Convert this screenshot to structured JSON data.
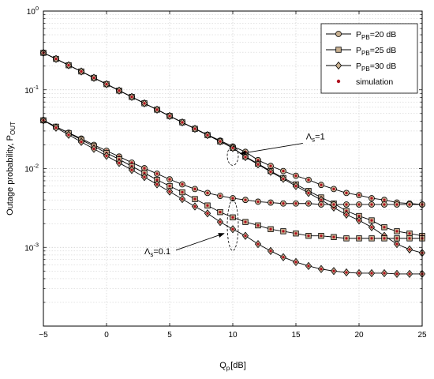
{
  "chart_data": {
    "type": "line",
    "title": "",
    "xlabel": "Q",
    "xlabel_sub": "p",
    "xlabel_suffix": " [dB]",
    "ylabel": "Outage probability, P",
    "ylabel_sub": "OUT",
    "xlim": [
      -5,
      25
    ],
    "ylim": [
      0.0001,
      1
    ],
    "yscale": "log",
    "grid": true,
    "legend_position": "top-right",
    "x_ticks": [
      -5,
      0,
      5,
      10,
      15,
      20,
      25
    ],
    "y_ticks": [
      {
        "value": 1,
        "base": "10",
        "exp": "0"
      },
      {
        "value": 0.1,
        "base": "10",
        "exp": "-1"
      },
      {
        "value": 0.01,
        "base": "10",
        "exp": "-2"
      },
      {
        "value": 0.001,
        "base": "10",
        "exp": "-3"
      }
    ],
    "x": [
      -5,
      -4,
      -3,
      -2,
      -1,
      0,
      1,
      2,
      3,
      4,
      5,
      6,
      7,
      8,
      9,
      10,
      11,
      12,
      13,
      14,
      15,
      16,
      17,
      18,
      19,
      20,
      21,
      22,
      23,
      24,
      25
    ],
    "series": [
      {
        "group": "Λs=1",
        "legend_index": 0,
        "marker": "circle",
        "values": [
          0.295,
          0.247,
          0.205,
          0.171,
          0.142,
          0.118,
          0.0978,
          0.0812,
          0.0674,
          0.056,
          0.0465,
          0.0386,
          0.0322,
          0.0269,
          0.0226,
          0.0191,
          0.0163,
          0.0128,
          0.0108,
          0.0093,
          0.0081,
          0.0072,
          0.0062,
          0.0055,
          0.0049,
          0.0046,
          0.0042,
          0.004,
          0.0037,
          0.0036,
          0.0035
        ]
      },
      {
        "group": "Λs=1",
        "legend_index": 1,
        "marker": "square",
        "values": [
          0.295,
          0.247,
          0.205,
          0.171,
          0.142,
          0.118,
          0.0978,
          0.0812,
          0.0674,
          0.056,
          0.0465,
          0.0386,
          0.032,
          0.0266,
          0.0221,
          0.0183,
          0.0142,
          0.0115,
          0.0093,
          0.0076,
          0.0063,
          0.0052,
          0.0043,
          0.0036,
          0.0029,
          0.0025,
          0.0022,
          0.0018,
          0.0016,
          0.0015,
          0.0014
        ]
      },
      {
        "group": "Λs=1",
        "legend_index": 2,
        "marker": "diamond",
        "values": [
          0.295,
          0.247,
          0.205,
          0.171,
          0.142,
          0.118,
          0.0978,
          0.0812,
          0.0674,
          0.056,
          0.0465,
          0.0386,
          0.032,
          0.0266,
          0.0221,
          0.0183,
          0.014,
          0.0113,
          0.0091,
          0.0074,
          0.006,
          0.0049,
          0.004,
          0.0032,
          0.0026,
          0.0022,
          0.0018,
          0.0014,
          0.0011,
          0.00094,
          0.00085
        ]
      },
      {
        "group": "Λs=0.1",
        "legend_index": 0,
        "marker": "circle",
        "values": [
          0.041,
          0.034,
          0.0285,
          0.024,
          0.02,
          0.0168,
          0.0142,
          0.0119,
          0.0101,
          0.0086,
          0.0073,
          0.0063,
          0.0055,
          0.0049,
          0.0045,
          0.0042,
          0.004,
          0.0038,
          0.0037,
          0.0036,
          0.0036,
          0.0036,
          0.0035,
          0.0035,
          0.0035,
          0.0035,
          0.0035,
          0.0035,
          0.0035,
          0.0035,
          0.0035
        ]
      },
      {
        "group": "Λs=0.1",
        "legend_index": 1,
        "marker": "square",
        "values": [
          0.041,
          0.034,
          0.0282,
          0.0232,
          0.0192,
          0.0158,
          0.0131,
          0.0107,
          0.0088,
          0.0072,
          0.006,
          0.005,
          0.0041,
          0.0034,
          0.0028,
          0.0024,
          0.0021,
          0.0019,
          0.0017,
          0.0016,
          0.0015,
          0.0014,
          0.0014,
          0.00135,
          0.0013,
          0.0013,
          0.0013,
          0.0013,
          0.0013,
          0.0013,
          0.0013
        ]
      },
      {
        "group": "Λs=0.1",
        "legend_index": 2,
        "marker": "diamond",
        "values": [
          0.041,
          0.033,
          0.0268,
          0.0218,
          0.0178,
          0.0145,
          0.0118,
          0.0096,
          0.0078,
          0.0063,
          0.0051,
          0.0041,
          0.0033,
          0.0027,
          0.0021,
          0.0017,
          0.0014,
          0.0011,
          0.0009,
          0.00075,
          0.00065,
          0.00058,
          0.00053,
          0.0005,
          0.00048,
          0.00047,
          0.00047,
          0.00047,
          0.00046,
          0.00046,
          0.00046
        ]
      }
    ],
    "legend": [
      {
        "prefix": "P",
        "sub": "PB",
        "suffix": "=20 dB",
        "marker": "circle"
      },
      {
        "prefix": "P",
        "sub": "PB",
        "suffix": "=25 dB",
        "marker": "square"
      },
      {
        "prefix": "P",
        "sub": "PB",
        "suffix": "=30 dB",
        "marker": "diamond"
      },
      {
        "prefix": "simulation",
        "sub": "",
        "suffix": "",
        "marker": "dot"
      }
    ],
    "annotations": [
      {
        "symbol": "Λ",
        "sub": "s",
        "suffix": "=1",
        "ellipse_center": [
          10,
          0.0145
        ],
        "arrow_to": [
          10.6,
          0.0155
        ],
        "text_at": [
          15.8,
          0.0235
        ]
      },
      {
        "symbol": "Λ",
        "sub": "s",
        "suffix": "=0.1",
        "ellipse_center": [
          10,
          0.0019
        ],
        "arrow_to": [
          9.3,
          0.0015
        ],
        "text_at": [
          3.0,
          0.00082
        ]
      }
    ],
    "colors": {
      "line": "#000000",
      "marker_fill": "#c8b090",
      "simulation": "#b01020",
      "grid": "#c8c8c8"
    }
  }
}
